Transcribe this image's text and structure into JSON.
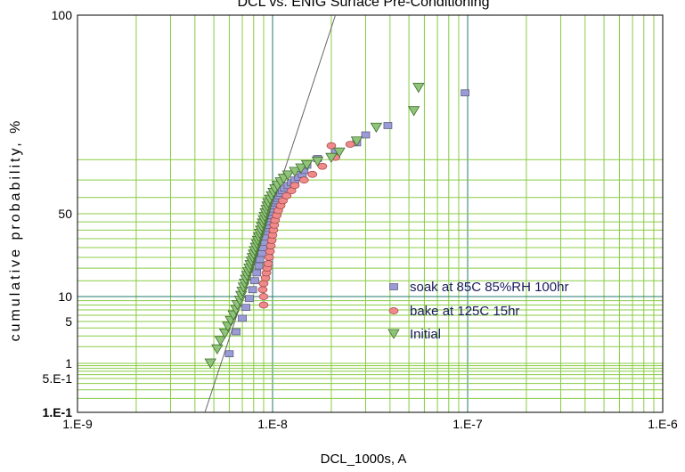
{
  "chart_data": {
    "type": "scatter",
    "title": "DCL vs. ENIG Surface Pre-Conditioning",
    "xlabel": "DCL_1000s, A",
    "ylabel": "cumulative probability, %",
    "x_scale": "log",
    "y_scale": "probability",
    "xlim": [
      1e-09,
      1e-06
    ],
    "ylim": [
      0.1,
      100
    ],
    "x_ticks": [
      {
        "value": 1e-09,
        "label": "1.E-9"
      },
      {
        "value": 1e-08,
        "label": "1.E-8"
      },
      {
        "value": 1e-07,
        "label": "1.E-7"
      },
      {
        "value": 1e-06,
        "label": "1.E-6"
      }
    ],
    "y_ticks": [
      {
        "value": 0.1,
        "label": "1.E-1"
      },
      {
        "value": 0.5,
        "label": "5.E-1"
      },
      {
        "value": 1,
        "label": "1"
      },
      {
        "value": 5,
        "label": "5"
      },
      {
        "value": 10,
        "label": "10"
      },
      {
        "value": 50,
        "label": "50"
      },
      {
        "value": 100,
        "label": "100"
      }
    ],
    "grid": true,
    "legend_position": "bottom-right",
    "series": [
      {
        "name": "soak at 85C 85%RH 100hr",
        "marker": "square",
        "color": "#9a9ad6",
        "points": [
          [
            6e-09,
            1.5
          ],
          [
            6.5e-09,
            3.5
          ],
          [
            7e-09,
            5.5
          ],
          [
            7.3e-09,
            7.5
          ],
          [
            7.6e-09,
            9.5
          ],
          [
            7.9e-09,
            12
          ],
          [
            8.1e-09,
            15
          ],
          [
            8.3e-09,
            18
          ],
          [
            8.5e-09,
            21
          ],
          [
            8.6e-09,
            24
          ],
          [
            8.8e-09,
            27
          ],
          [
            8.9e-09,
            30
          ],
          [
            9e-09,
            33
          ],
          [
            9.1e-09,
            36
          ],
          [
            9.2e-09,
            39
          ],
          [
            9.3e-09,
            41
          ],
          [
            9.4e-09,
            43
          ],
          [
            9.5e-09,
            45
          ],
          [
            9.6e-09,
            47
          ],
          [
            9.7e-09,
            49
          ],
          [
            9.8e-09,
            51
          ],
          [
            9.9e-09,
            53
          ],
          [
            1e-08,
            55
          ],
          [
            1.02e-08,
            56.5
          ],
          [
            1.04e-08,
            58
          ],
          [
            1.06e-08,
            59.5
          ],
          [
            1.08e-08,
            61
          ],
          [
            1.1e-08,
            62.5
          ],
          [
            1.12e-08,
            64
          ],
          [
            1.15e-08,
            65.5
          ],
          [
            1.2e-08,
            67
          ],
          [
            1.25e-08,
            68.5
          ],
          [
            1.3e-08,
            70
          ],
          [
            1.36e-08,
            71.5
          ],
          [
            1.42e-08,
            73
          ],
          [
            1.45e-08,
            75
          ],
          [
            1.5e-08,
            77.5
          ],
          [
            1.7e-08,
            80.5
          ],
          [
            2.1e-08,
            83.5
          ],
          [
            2.7e-08,
            86.5
          ],
          [
            3e-08,
            89
          ],
          [
            3.9e-08,
            91.5
          ],
          [
            9.7e-08,
            97
          ]
        ]
      },
      {
        "name": "bake at 125C 15hr",
        "marker": "ellipse",
        "color": "#f08a8a",
        "points": [
          [
            9e-09,
            8
          ],
          [
            9e-09,
            10
          ],
          [
            8.9e-09,
            12
          ],
          [
            9e-09,
            14
          ],
          [
            9.2e-09,
            16
          ],
          [
            9.3e-09,
            18
          ],
          [
            9.4e-09,
            20
          ],
          [
            9.5e-09,
            22
          ],
          [
            9.6e-09,
            25
          ],
          [
            9.7e-09,
            28
          ],
          [
            9.8e-09,
            31
          ],
          [
            9.9e-09,
            34
          ],
          [
            1e-08,
            37
          ],
          [
            1.01e-08,
            40
          ],
          [
            1.02e-08,
            43
          ],
          [
            1.03e-08,
            46
          ],
          [
            1.05e-08,
            49
          ],
          [
            1.07e-08,
            52
          ],
          [
            1.1e-08,
            55
          ],
          [
            1.13e-08,
            58
          ],
          [
            1.18e-08,
            61
          ],
          [
            1.25e-08,
            64
          ],
          [
            1.3e-08,
            67
          ],
          [
            1.45e-08,
            70
          ],
          [
            1.6e-08,
            73
          ],
          [
            1.8e-08,
            77
          ],
          [
            2.1e-08,
            81
          ],
          [
            2.5e-08,
            86
          ],
          [
            2e-08,
            85.5
          ]
        ]
      },
      {
        "name": "Initial",
        "marker": "triangle-down",
        "color": "#8fc47a",
        "points": [
          [
            4.8e-09,
            1.0
          ],
          [
            5.2e-09,
            1.8
          ],
          [
            5.4e-09,
            2.5
          ],
          [
            5.7e-09,
            3.3
          ],
          [
            5.9e-09,
            4.2
          ],
          [
            6.1e-09,
            5.1
          ],
          [
            6.3e-09,
            6.0
          ],
          [
            6.5e-09,
            7.0
          ],
          [
            6.6e-09,
            8.0
          ],
          [
            6.8e-09,
            9.0
          ],
          [
            6.9e-09,
            10.2
          ],
          [
            7e-09,
            11.4
          ],
          [
            7.1e-09,
            12.7
          ],
          [
            7.2e-09,
            14.0
          ],
          [
            7.3e-09,
            15.4
          ],
          [
            7.4e-09,
            16.8
          ],
          [
            7.5e-09,
            18.3
          ],
          [
            7.6e-09,
            19.8
          ],
          [
            7.7e-09,
            21.4
          ],
          [
            7.8e-09,
            23.0
          ],
          [
            7.9e-09,
            24.7
          ],
          [
            8e-09,
            26.4
          ],
          [
            8.1e-09,
            28.2
          ],
          [
            8.2e-09,
            30.0
          ],
          [
            8.3e-09,
            31.9
          ],
          [
            8.4e-09,
            33.8
          ],
          [
            8.5e-09,
            35.8
          ],
          [
            8.6e-09,
            37.8
          ],
          [
            8.7e-09,
            39.8
          ],
          [
            8.8e-09,
            41.9
          ],
          [
            8.9e-09,
            44.0
          ],
          [
            9e-09,
            46.1
          ],
          [
            9.1e-09,
            48.2
          ],
          [
            9.2e-09,
            50.3
          ],
          [
            9.3e-09,
            52.4
          ],
          [
            9.4e-09,
            54.5
          ],
          [
            9.5e-09,
            56.6
          ],
          [
            9.7e-09,
            58.7
          ],
          [
            9.9e-09,
            60.8
          ],
          [
            1.01e-08,
            62.8
          ],
          [
            1.03e-08,
            64.8
          ],
          [
            1.06e-08,
            66.8
          ],
          [
            1.1e-08,
            68.8
          ],
          [
            1.14e-08,
            70.7
          ],
          [
            1.2e-08,
            72.5
          ],
          [
            1.3e-08,
            74.3
          ],
          [
            1.4e-08,
            76.0
          ],
          [
            1.5e-08,
            77.6
          ],
          [
            1.7e-08,
            79.2
          ],
          [
            2e-08,
            80.8
          ],
          [
            2.2e-08,
            83.0
          ],
          [
            2.7e-08,
            87.0
          ],
          [
            3.4e-08,
            91.0
          ],
          [
            5.3e-08,
            94.5
          ],
          [
            5.6e-08,
            97.5
          ]
        ]
      }
    ],
    "reference_line": {
      "x": [
        4.5e-09,
        2.1e-08
      ],
      "y": [
        0.1,
        99.99
      ]
    }
  }
}
